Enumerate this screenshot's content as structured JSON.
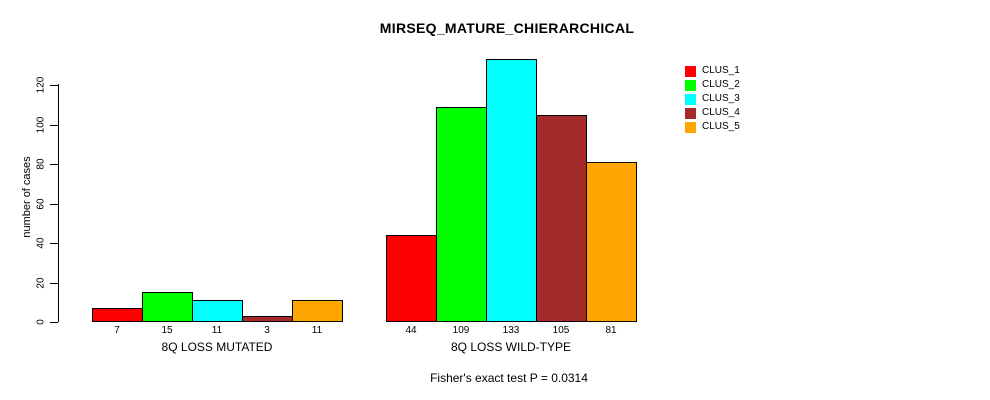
{
  "chart_data": {
    "type": "bar",
    "title": "MIRSEQ_MATURE_CHIERARCHICAL",
    "ylabel": "number of cases",
    "xlabel": "",
    "yticks": [
      0,
      20,
      40,
      60,
      80,
      100,
      120
    ],
    "ylim": [
      0,
      133
    ],
    "grid": false,
    "legend_position": "right",
    "categories": [
      "8Q LOSS MUTATED",
      "8Q LOSS WILD-TYPE"
    ],
    "series": [
      {
        "name": "CLUS_1",
        "color": "#FF0000",
        "values": [
          7,
          44
        ]
      },
      {
        "name": "CLUS_2",
        "color": "#00FF00",
        "values": [
          15,
          109
        ]
      },
      {
        "name": "CLUS_3",
        "color": "#00FFFF",
        "values": [
          11,
          133
        ]
      },
      {
        "name": "CLUS_4",
        "color": "#A52A2A",
        "values": [
          3,
          105
        ]
      },
      {
        "name": "CLUS_5",
        "color": "#FFA500",
        "values": [
          11,
          81
        ]
      }
    ],
    "groups": [
      {
        "label": "8Q LOSS MUTATED",
        "values": [
          7,
          15,
          11,
          3,
          11
        ]
      },
      {
        "label": "8Q LOSS WILD-TYPE",
        "values": [
          44,
          109,
          133,
          105,
          81
        ]
      }
    ],
    "bar_value_labels_shown": true,
    "annotation": "Fisher's exact test P = 0.0314"
  },
  "legend": {
    "items": [
      {
        "label": "CLUS_1",
        "color": "#FF0000"
      },
      {
        "label": "CLUS_2",
        "color": "#00FF00"
      },
      {
        "label": "CLUS_3",
        "color": "#00FFFF"
      },
      {
        "label": "CLUS_4",
        "color": "#A52A2A"
      },
      {
        "label": "CLUS_5",
        "color": "#FFA500"
      }
    ]
  },
  "colors": {
    "background": "#FFFFFF",
    "axis": "#000000",
    "text": "#000000"
  }
}
